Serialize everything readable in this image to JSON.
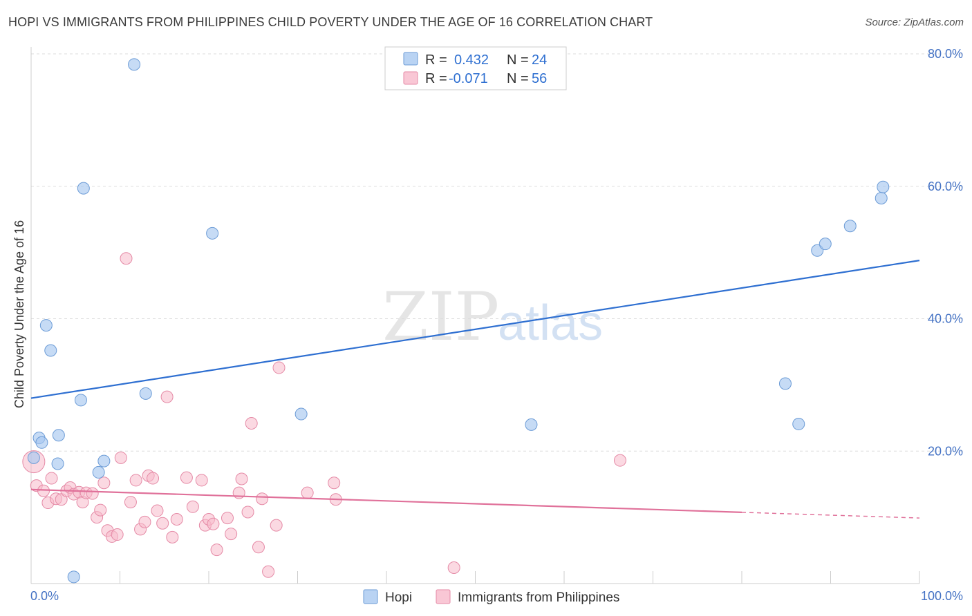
{
  "title": "HOPI VS IMMIGRANTS FROM PHILIPPINES CHILD POVERTY UNDER THE AGE OF 16 CORRELATION CHART",
  "source": "Source: ZipAtlas.com",
  "watermark": {
    "zip": "ZIP",
    "atlas": "atlas"
  },
  "chart_data": {
    "type": "scatter",
    "title": "HOPI VS IMMIGRANTS FROM PHILIPPINES CHILD POVERTY UNDER THE AGE OF 16 CORRELATION CHART",
    "xlabel": "",
    "ylabel": "Child Poverty Under the Age of 16",
    "xlim": [
      0,
      100
    ],
    "ylim": [
      0,
      80
    ],
    "x_tick_labels": [
      "0.0%",
      "100.0%"
    ],
    "y_ticks": [
      20,
      40,
      60,
      80
    ],
    "y_tick_labels": [
      "20.0%",
      "40.0%",
      "60.0%",
      "80.0%"
    ],
    "grid": true,
    "legend_stats": [
      {
        "r_label": "R =",
        "r_value": "0.432",
        "n_label": "N =",
        "n_value": "24"
      },
      {
        "r_label": "R =",
        "r_value": "-0.071",
        "n_label": "N =",
        "n_value": "56"
      }
    ],
    "series": [
      {
        "name": "Hopi",
        "color": "#a8c8f0",
        "stroke": "#6b9bd6",
        "line_color": "#2e6fd1",
        "trend": {
          "x0": 0,
          "y0": 28.0,
          "x1": 100,
          "y1": 48.8,
          "solid_until": 100
        },
        "points": [
          [
            0.3,
            19.0
          ],
          [
            0.9,
            22.0
          ],
          [
            1.2,
            21.3
          ],
          [
            1.7,
            39.0
          ],
          [
            2.2,
            35.2
          ],
          [
            3.0,
            18.1
          ],
          [
            3.1,
            22.4
          ],
          [
            5.6,
            27.7
          ],
          [
            5.9,
            59.7
          ],
          [
            7.6,
            16.8
          ],
          [
            8.2,
            18.5
          ],
          [
            11.6,
            78.4
          ],
          [
            12.9,
            28.7
          ],
          [
            20.4,
            52.9
          ],
          [
            30.4,
            25.6
          ],
          [
            4.8,
            1.0
          ],
          [
            56.3,
            24.0
          ],
          [
            84.9,
            30.2
          ],
          [
            86.4,
            24.1
          ],
          [
            88.5,
            50.3
          ],
          [
            89.4,
            51.3
          ],
          [
            92.2,
            54.0
          ],
          [
            95.7,
            58.2
          ],
          [
            95.9,
            59.9
          ]
        ]
      },
      {
        "name": "Immigrants from Philippines",
        "color": "#f7b9cb",
        "stroke": "#e58aa6",
        "line_color": "#e0719a",
        "trend": {
          "x0": 0,
          "y0": 14.2,
          "x1": 100,
          "y1": 9.9,
          "solid_until": 80
        },
        "points": [
          [
            0.3,
            18.4
          ],
          [
            0.6,
            14.8
          ],
          [
            1.4,
            14.0
          ],
          [
            1.9,
            12.2
          ],
          [
            2.3,
            15.9
          ],
          [
            2.8,
            12.8
          ],
          [
            3.4,
            12.7
          ],
          [
            4.0,
            14.0
          ],
          [
            4.4,
            14.5
          ],
          [
            4.8,
            13.5
          ],
          [
            5.4,
            13.8
          ],
          [
            5.8,
            12.3
          ],
          [
            6.2,
            13.7
          ],
          [
            6.9,
            13.6
          ],
          [
            7.4,
            10.0
          ],
          [
            7.8,
            11.1
          ],
          [
            8.2,
            15.2
          ],
          [
            8.6,
            8.0
          ],
          [
            9.1,
            7.1
          ],
          [
            9.7,
            7.4
          ],
          [
            10.1,
            19.0
          ],
          [
            10.7,
            49.1
          ],
          [
            11.2,
            12.3
          ],
          [
            11.8,
            15.6
          ],
          [
            12.3,
            8.2
          ],
          [
            12.8,
            9.3
          ],
          [
            13.2,
            16.3
          ],
          [
            13.7,
            15.9
          ],
          [
            14.2,
            11.0
          ],
          [
            14.8,
            9.1
          ],
          [
            15.3,
            28.2
          ],
          [
            15.9,
            7.0
          ],
          [
            16.4,
            9.7
          ],
          [
            17.5,
            16.0
          ],
          [
            18.2,
            11.6
          ],
          [
            19.2,
            15.6
          ],
          [
            19.6,
            8.8
          ],
          [
            20.0,
            9.7
          ],
          [
            20.5,
            9.0
          ],
          [
            20.9,
            5.1
          ],
          [
            22.1,
            9.9
          ],
          [
            22.5,
            7.5
          ],
          [
            23.4,
            13.7
          ],
          [
            23.7,
            15.8
          ],
          [
            24.4,
            10.8
          ],
          [
            24.8,
            24.2
          ],
          [
            25.6,
            5.5
          ],
          [
            26.0,
            12.8
          ],
          [
            26.7,
            1.8
          ],
          [
            27.6,
            8.8
          ],
          [
            27.9,
            32.6
          ],
          [
            31.1,
            13.7
          ],
          [
            34.1,
            15.2
          ],
          [
            34.3,
            12.7
          ],
          [
            47.6,
            2.4
          ],
          [
            66.3,
            18.6
          ]
        ]
      }
    ]
  }
}
